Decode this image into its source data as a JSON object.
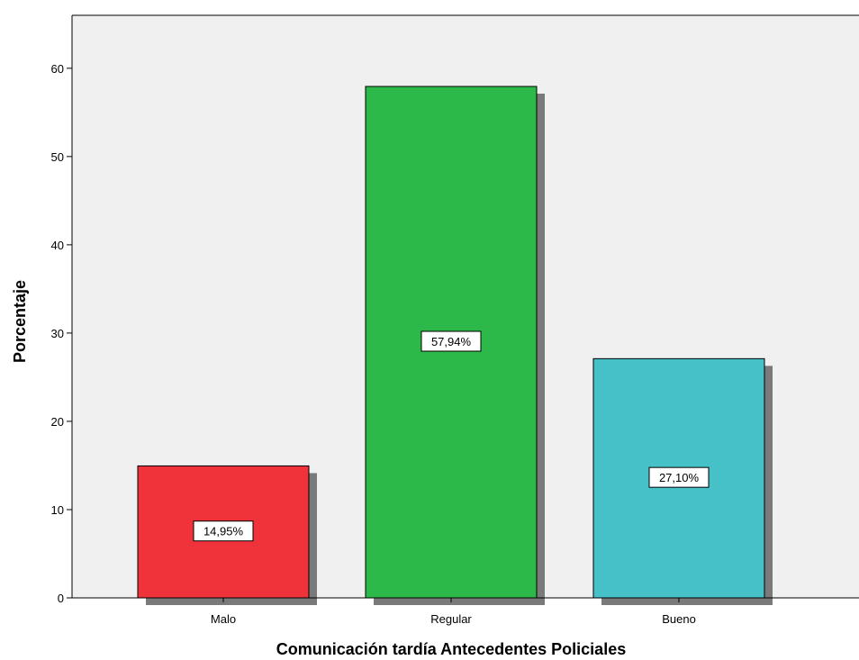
{
  "chart_data": {
    "type": "bar",
    "title": "",
    "xlabel": "Comunicación tardía Antecedentes Policiales",
    "ylabel": "Porcentaje",
    "categories": [
      "Malo",
      "Regular",
      "Bueno"
    ],
    "values": [
      14.95,
      57.94,
      27.1
    ],
    "data_labels": [
      "14,95%",
      "57,94%",
      "27,10%"
    ],
    "colors": [
      "#f0333a",
      "#2db84a",
      "#45c1c7"
    ],
    "ylim": [
      0,
      66
    ],
    "yticks": [
      0,
      10,
      20,
      30,
      40,
      50,
      60
    ],
    "grid": false,
    "legend": "none",
    "plot_background": "#f0f0f0"
  }
}
